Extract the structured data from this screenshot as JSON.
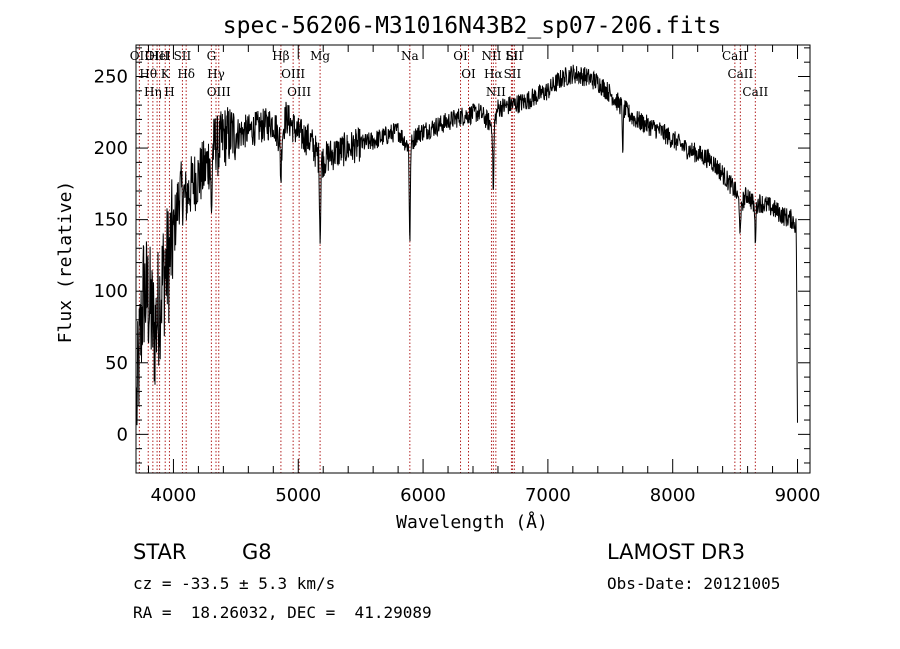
{
  "chart_data": {
    "type": "line",
    "title": "spec-56206-M31016N43B2_sp07-206.fits",
    "xlabel": "Wavelength (Å)",
    "ylabel": "Flux (relative)",
    "xlim": [
      3700,
      9100
    ],
    "ylim": [
      -27,
      272
    ],
    "xticks": [
      "4000",
      "5000",
      "6000",
      "7000",
      "8000",
      "9000"
    ],
    "xtick_values": [
      4000,
      5000,
      6000,
      7000,
      8000,
      9000
    ],
    "yticks": [
      "0",
      "50",
      "100",
      "150",
      "200",
      "250"
    ],
    "ytick_values": [
      0,
      50,
      100,
      150,
      200,
      250
    ],
    "grid": false,
    "spectrum_envelope": {
      "x": [
        3700,
        3720,
        3760,
        3800,
        3850,
        3880,
        3920,
        3960,
        4000,
        4050,
        4100,
        4150,
        4200,
        4250,
        4300,
        4340,
        4360,
        4400,
        4500,
        4600,
        4700,
        4800,
        4860,
        4900,
        5000,
        5100,
        5180,
        5250,
        5400,
        5600,
        5800,
        5890,
        5950,
        6100,
        6300,
        6450,
        6563,
        6600,
        6800,
        7000,
        7100,
        7200,
        7300,
        7400,
        7500,
        7600,
        7700,
        7900,
        8100,
        8300,
        8400,
        8500,
        8540,
        8600,
        8650,
        8700,
        8800,
        8900,
        8960,
        8990,
        9000
      ],
      "y": [
        10,
        45,
        100,
        95,
        70,
        90,
        110,
        120,
        140,
        170,
        165,
        175,
        180,
        185,
        195,
        205,
        200,
        208,
        210,
        212,
        215,
        218,
        205,
        222,
        210,
        205,
        190,
        195,
        200,
        205,
        212,
        200,
        210,
        215,
        222,
        225,
        215,
        228,
        232,
        240,
        248,
        252,
        250,
        246,
        238,
        228,
        220,
        212,
        200,
        192,
        182,
        170,
        160,
        168,
        160,
        162,
        158,
        152,
        150,
        145,
        5
      ]
    },
    "spectral_lines": [
      {
        "name": "Hθ",
        "wavelength": 3798
      },
      {
        "name": "OII",
        "wavelength": 3727
      },
      {
        "name": "OIII",
        "wavelength": 3869
      },
      {
        "name": "HeI",
        "wavelength": 3889
      },
      {
        "name": "Hη",
        "wavelength": 3835
      },
      {
        "name": "K",
        "wavelength": 3934
      },
      {
        "name": "H",
        "wavelength": 3968
      },
      {
        "name": "SII",
        "wavelength": 4072
      },
      {
        "name": "Hδ",
        "wavelength": 4102
      },
      {
        "name": "G",
        "wavelength": 4304
      },
      {
        "name": "OIII",
        "wavelength": 4363
      },
      {
        "name": "Hγ",
        "wavelength": 4341
      },
      {
        "name": "Hβ",
        "wavelength": 4861
      },
      {
        "name": "OIII",
        "wavelength": 4959
      },
      {
        "name": "OIII",
        "wavelength": 5007
      },
      {
        "name": "Mg",
        "wavelength": 5175
      },
      {
        "name": "Na",
        "wavelength": 5894
      },
      {
        "name": "OI",
        "wavelength": 6300
      },
      {
        "name": "OI",
        "wavelength": 6364
      },
      {
        "name": "Hα",
        "wavelength": 6563
      },
      {
        "name": "NII",
        "wavelength": 6548
      },
      {
        "name": "NII",
        "wavelength": 6583
      },
      {
        "name": "SII",
        "wavelength": 6716
      },
      {
        "name": "Li",
        "wavelength": 6708
      },
      {
        "name": "SII",
        "wavelength": 6731
      },
      {
        "name": "CaII",
        "wavelength": 8498
      },
      {
        "name": "CaII",
        "wavelength": 8542
      },
      {
        "name": "CaII",
        "wavelength": 8662
      }
    ],
    "line_color": "#000000",
    "marker_color": "#b22222"
  },
  "object_class": "STAR",
  "subclass": "G8",
  "survey": "LAMOST DR3",
  "cz_text": "cz = -33.5 ± 5.3 km/s",
  "coords_text": "RA =  18.26032, DEC =  41.29089",
  "obs_date_text": "Obs-Date: 20121005"
}
